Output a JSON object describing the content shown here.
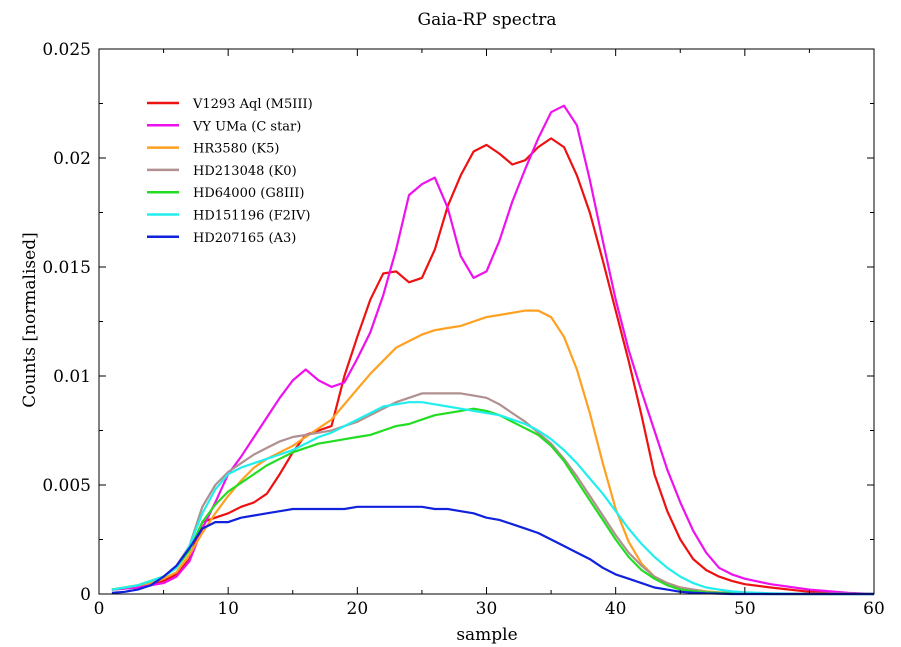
{
  "chart_data": {
    "type": "line",
    "title": "Gaia-RP spectra",
    "xlabel": "sample",
    "ylabel": "Counts [normalised]",
    "xlim": [
      0,
      60
    ],
    "ylim": [
      0,
      0.025
    ],
    "x_ticks": [
      0,
      10,
      20,
      30,
      40,
      50,
      60
    ],
    "x_tick_labels": [
      "0",
      "10",
      "20",
      "30",
      "40",
      "50",
      "60"
    ],
    "y_ticks": [
      0,
      0.005,
      0.01,
      0.015,
      0.02,
      0.025
    ],
    "y_tick_labels": [
      "0",
      "0.005",
      "0.01",
      "0.015",
      "0.02",
      "0.025"
    ],
    "grid": false,
    "legend_position": "top-left",
    "series": [
      {
        "name": "V1293 Aql (M5III)",
        "color": "#ee1111",
        "x": [
          1,
          2,
          3,
          4,
          5,
          6,
          7,
          8,
          9,
          10,
          11,
          12,
          13,
          14,
          15,
          16,
          17,
          18,
          19,
          20,
          21,
          22,
          23,
          24,
          25,
          26,
          27,
          28,
          29,
          30,
          31,
          32,
          33,
          34,
          35,
          36,
          37,
          38,
          39,
          40,
          41,
          42,
          43,
          44,
          45,
          46,
          47,
          48,
          49,
          50,
          52,
          55,
          58,
          60
        ],
        "y": [
          0.0002,
          0.00025,
          0.0003,
          0.0004,
          0.0006,
          0.0009,
          0.0016,
          0.0033,
          0.0035,
          0.0037,
          0.004,
          0.0042,
          0.0046,
          0.0055,
          0.0065,
          0.0073,
          0.0075,
          0.0077,
          0.01,
          0.0118,
          0.0135,
          0.0147,
          0.0148,
          0.0143,
          0.0145,
          0.0158,
          0.0178,
          0.0192,
          0.0203,
          0.0206,
          0.0202,
          0.0197,
          0.0199,
          0.0205,
          0.0209,
          0.0205,
          0.0192,
          0.0175,
          0.0153,
          0.013,
          0.0107,
          0.0082,
          0.0055,
          0.0038,
          0.0025,
          0.0016,
          0.0011,
          0.0008,
          0.0006,
          0.00045,
          0.0003,
          0.0001,
          3e-05,
          0.0
        ]
      },
      {
        "name": "VY UMa (C star)",
        "color": "#ee11ee",
        "x": [
          1,
          2,
          3,
          4,
          5,
          6,
          7,
          8,
          9,
          10,
          11,
          12,
          13,
          14,
          15,
          16,
          17,
          18,
          19,
          20,
          21,
          22,
          23,
          24,
          25,
          26,
          27,
          28,
          29,
          30,
          31,
          32,
          33,
          34,
          35,
          36,
          37,
          38,
          39,
          40,
          41,
          42,
          43,
          44,
          45,
          46,
          47,
          48,
          49,
          50,
          52,
          55,
          58,
          60
        ],
        "y": [
          0.0002,
          0.00025,
          0.0003,
          0.0004,
          0.0005,
          0.0008,
          0.0015,
          0.003,
          0.0042,
          0.0055,
          0.0063,
          0.0072,
          0.0081,
          0.009,
          0.0098,
          0.0103,
          0.0098,
          0.0095,
          0.0097,
          0.0108,
          0.012,
          0.0137,
          0.0158,
          0.0183,
          0.0188,
          0.0191,
          0.0177,
          0.0155,
          0.0145,
          0.0148,
          0.0162,
          0.018,
          0.0195,
          0.0209,
          0.0221,
          0.0224,
          0.0215,
          0.019,
          0.0162,
          0.0135,
          0.0112,
          0.0093,
          0.0075,
          0.0057,
          0.0042,
          0.0029,
          0.0019,
          0.0012,
          0.0009,
          0.0007,
          0.00045,
          0.0002,
          5e-05,
          0.0
        ]
      },
      {
        "name": "HR3580 (K5)",
        "color": "#ffa020",
        "x": [
          1,
          2,
          3,
          4,
          5,
          6,
          7,
          8,
          9,
          10,
          11,
          12,
          13,
          14,
          15,
          16,
          17,
          18,
          19,
          20,
          21,
          22,
          23,
          24,
          25,
          26,
          27,
          28,
          29,
          30,
          31,
          32,
          33,
          34,
          35,
          36,
          37,
          38,
          39,
          40,
          41,
          42,
          43,
          44,
          45,
          46,
          47,
          48,
          49,
          50,
          52,
          55,
          58,
          60
        ],
        "y": [
          0.0002,
          0.0003,
          0.0004,
          0.0005,
          0.0007,
          0.001,
          0.0018,
          0.0028,
          0.0037,
          0.0045,
          0.0052,
          0.0058,
          0.0062,
          0.0065,
          0.0068,
          0.0072,
          0.0076,
          0.008,
          0.0087,
          0.0094,
          0.0101,
          0.0107,
          0.0113,
          0.0116,
          0.0119,
          0.0121,
          0.0122,
          0.0123,
          0.0125,
          0.0127,
          0.0128,
          0.0129,
          0.013,
          0.013,
          0.0127,
          0.0118,
          0.0103,
          0.0083,
          0.006,
          0.0039,
          0.0024,
          0.0014,
          0.0008,
          0.0005,
          0.0003,
          0.0002,
          0.00012,
          8e-05,
          5e-05,
          3e-05,
          2e-05,
          0.0,
          0.0,
          0.0
        ]
      },
      {
        "name": "HD213048 (K0)",
        "color": "#b09090",
        "x": [
          1,
          2,
          3,
          4,
          5,
          6,
          7,
          8,
          9,
          10,
          11,
          12,
          13,
          14,
          15,
          16,
          17,
          18,
          19,
          20,
          21,
          22,
          23,
          24,
          25,
          26,
          27,
          28,
          29,
          30,
          31,
          32,
          33,
          34,
          35,
          36,
          37,
          38,
          39,
          40,
          41,
          42,
          43,
          44,
          45,
          46,
          47,
          48,
          49,
          50,
          52,
          55,
          58,
          60
        ],
        "y": [
          0.0002,
          0.0003,
          0.0004,
          0.0006,
          0.0008,
          0.0013,
          0.0022,
          0.004,
          0.005,
          0.0056,
          0.006,
          0.0064,
          0.0067,
          0.007,
          0.0072,
          0.0073,
          0.0074,
          0.0075,
          0.0077,
          0.0079,
          0.0082,
          0.0085,
          0.0088,
          0.009,
          0.0092,
          0.0092,
          0.0092,
          0.0092,
          0.0091,
          0.009,
          0.0087,
          0.0083,
          0.0079,
          0.0074,
          0.0069,
          0.0062,
          0.0054,
          0.0045,
          0.0036,
          0.0027,
          0.0019,
          0.0013,
          0.0008,
          0.0005,
          0.0003,
          0.0002,
          0.0001,
          6e-05,
          4e-05,
          2e-05,
          0.0,
          0.0,
          0.0,
          0.0
        ]
      },
      {
        "name": "HD64000 (G8III)",
        "color": "#22dd22",
        "x": [
          1,
          2,
          3,
          4,
          5,
          6,
          7,
          8,
          9,
          10,
          11,
          12,
          13,
          14,
          15,
          16,
          17,
          18,
          19,
          20,
          21,
          22,
          23,
          24,
          25,
          26,
          27,
          28,
          29,
          30,
          31,
          32,
          33,
          34,
          35,
          36,
          37,
          38,
          39,
          40,
          41,
          42,
          43,
          44,
          45,
          46,
          47,
          48,
          49,
          50,
          52,
          55,
          58,
          60
        ],
        "y": [
          0.0002,
          0.0003,
          0.0004,
          0.0006,
          0.0008,
          0.0012,
          0.002,
          0.0033,
          0.0041,
          0.0047,
          0.0051,
          0.0055,
          0.0059,
          0.0062,
          0.0065,
          0.0067,
          0.0069,
          0.007,
          0.0071,
          0.0072,
          0.0073,
          0.0075,
          0.0077,
          0.0078,
          0.008,
          0.0082,
          0.0083,
          0.0084,
          0.0085,
          0.0084,
          0.0082,
          0.0079,
          0.0076,
          0.0073,
          0.0068,
          0.0061,
          0.0052,
          0.0043,
          0.0034,
          0.0025,
          0.0017,
          0.0011,
          0.0007,
          0.0004,
          0.0002,
          0.00013,
          8e-05,
          5e-05,
          3e-05,
          2e-05,
          0.0,
          0.0,
          0.0,
          0.0
        ]
      },
      {
        "name": "HD151196 (F2IV)",
        "color": "#22eeee",
        "x": [
          1,
          2,
          3,
          4,
          5,
          6,
          7,
          8,
          9,
          10,
          11,
          12,
          13,
          14,
          15,
          16,
          17,
          18,
          19,
          20,
          21,
          22,
          23,
          24,
          25,
          26,
          27,
          28,
          29,
          30,
          31,
          32,
          33,
          34,
          35,
          36,
          37,
          38,
          39,
          40,
          41,
          42,
          43,
          44,
          45,
          46,
          47,
          48,
          49,
          50,
          52,
          55,
          58,
          60
        ],
        "y": [
          0.0002,
          0.0003,
          0.0004,
          0.0006,
          0.0008,
          0.0012,
          0.0022,
          0.0037,
          0.0048,
          0.0055,
          0.0058,
          0.006,
          0.0062,
          0.0064,
          0.0066,
          0.0069,
          0.0072,
          0.0074,
          0.0077,
          0.008,
          0.0083,
          0.0086,
          0.0087,
          0.0088,
          0.0088,
          0.0087,
          0.0086,
          0.0085,
          0.0084,
          0.0083,
          0.0082,
          0.008,
          0.0078,
          0.0075,
          0.0071,
          0.0066,
          0.006,
          0.0053,
          0.0046,
          0.0038,
          0.003,
          0.0023,
          0.0017,
          0.0012,
          0.0008,
          0.0005,
          0.0003,
          0.0002,
          0.00012,
          8e-05,
          3e-05,
          0.0,
          0.0,
          0.0
        ]
      },
      {
        "name": "HD207165 (A3)",
        "color": "#1122dd",
        "x": [
          1,
          2,
          3,
          4,
          5,
          6,
          7,
          8,
          9,
          10,
          11,
          12,
          13,
          14,
          15,
          16,
          17,
          18,
          19,
          20,
          21,
          22,
          23,
          24,
          25,
          26,
          27,
          28,
          29,
          30,
          31,
          32,
          33,
          34,
          35,
          36,
          37,
          38,
          39,
          40,
          41,
          42,
          43,
          44,
          45,
          46,
          47,
          48,
          49,
          50,
          52,
          55,
          58,
          60
        ],
        "y": [
          5e-05,
          0.0001,
          0.0002,
          0.0004,
          0.0008,
          0.0013,
          0.0021,
          0.003,
          0.0033,
          0.0033,
          0.0035,
          0.0036,
          0.0037,
          0.0038,
          0.0039,
          0.0039,
          0.0039,
          0.0039,
          0.0039,
          0.004,
          0.004,
          0.004,
          0.004,
          0.004,
          0.004,
          0.0039,
          0.0039,
          0.0038,
          0.0037,
          0.0035,
          0.0034,
          0.0032,
          0.003,
          0.0028,
          0.0025,
          0.0022,
          0.0019,
          0.0016,
          0.0012,
          0.0009,
          0.0007,
          0.0005,
          0.0003,
          0.0002,
          0.0001,
          6e-05,
          3e-05,
          2e-05,
          0.0,
          0.0,
          0.0,
          0.0,
          0.0,
          0.0
        ]
      }
    ]
  }
}
